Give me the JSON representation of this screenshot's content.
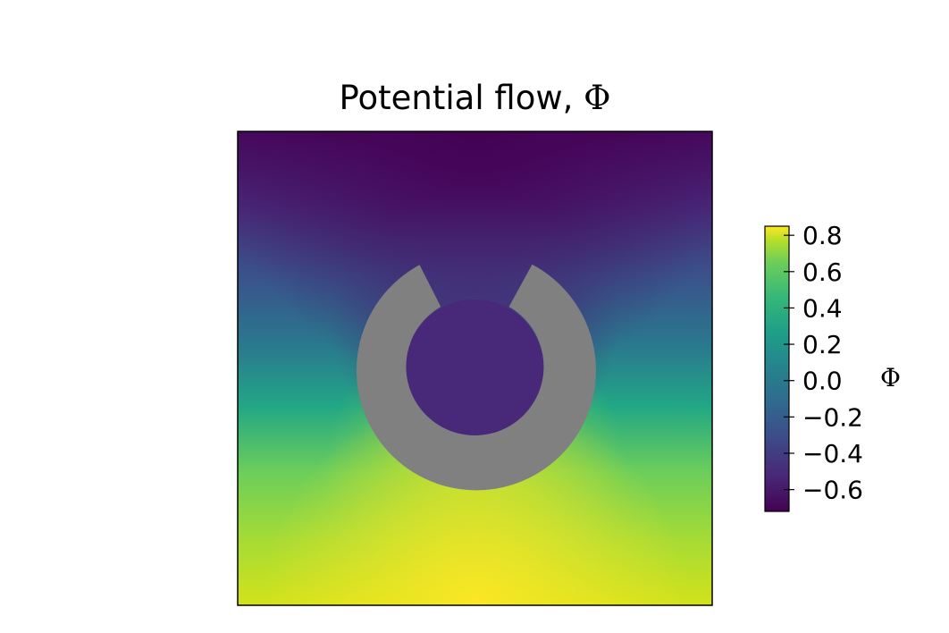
{
  "chart_data": {
    "type": "heatmap",
    "title": "Potential flow, ",
    "title_symbol": "Φ",
    "colormap": "viridis",
    "obstacle_color": "#808080",
    "colorbar": {
      "label": "Φ",
      "range": [
        -0.72,
        0.85
      ],
      "ticks": [
        0.8,
        0.6,
        0.4,
        0.2,
        0.0,
        -0.2,
        -0.4,
        -0.6
      ],
      "tick_labels": [
        "0.8",
        "0.6",
        "0.4",
        "0.2",
        "0.0",
        "−0.2",
        "−0.4",
        "−0.6"
      ]
    },
    "field_samples": [
      {
        "name": "top-center",
        "value": -0.72
      },
      {
        "name": "top-corners",
        "value": -0.55
      },
      {
        "name": "mid-top",
        "value": -0.35
      },
      {
        "name": "center",
        "value": 0.0
      },
      {
        "name": "mid-bottom",
        "value": 0.4
      },
      {
        "name": "bottom-corners",
        "value": 0.7
      },
      {
        "name": "bottom-center",
        "value": 0.85
      },
      {
        "name": "inside-ring",
        "value": -0.6
      }
    ],
    "grid": false,
    "legend": "colorbar-right"
  }
}
